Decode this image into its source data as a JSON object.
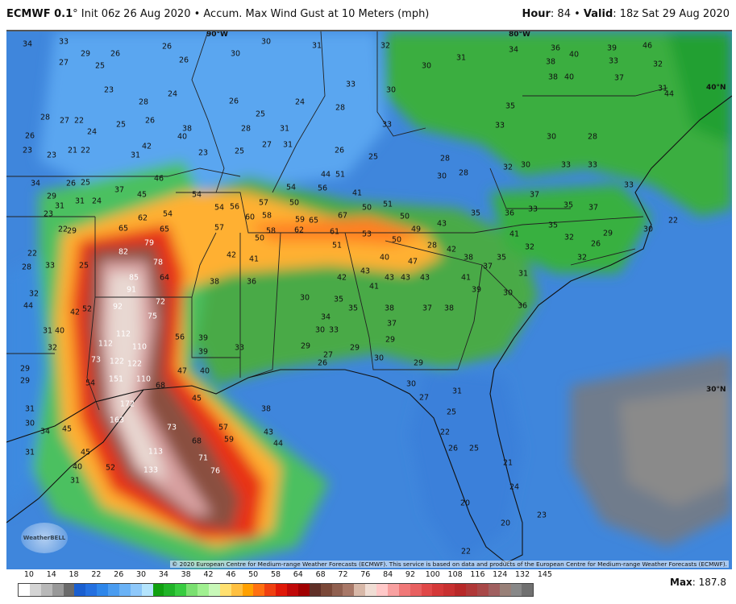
{
  "header": {
    "model": "ECMWF 0.1",
    "init": "° Init 06z 26 Aug 2020 • Accum. Max Wind Gust at 10 Meters (mph)",
    "hour_label": "Hour",
    "hour": ": 84 • ",
    "valid_label": "Valid",
    "valid": ": 18z Sat 29 Aug 2020"
  },
  "map": {
    "grid_labels": [
      "90°W",
      "80°W",
      "40°N",
      "30°N"
    ],
    "logo": "WeatherBELL",
    "copyright": "© 2020 European Centre for Medium-range Weather Forecasts (ECMWF). This service is based on data and products of the European Centre for Medium-range Weather Forecasts (ECMWF).",
    "values": [
      34,
      33,
      29,
      26,
      26,
      26,
      30,
      30,
      31,
      32,
      30,
      31,
      34,
      40,
      46,
      39,
      27,
      25,
      23,
      28,
      24,
      26,
      25,
      22,
      24,
      26,
      23,
      23,
      21,
      22,
      31,
      28,
      31,
      28,
      33,
      30,
      33,
      35,
      33,
      30,
      28,
      34,
      37,
      45,
      46,
      54,
      62,
      54,
      65,
      65,
      79,
      82,
      78,
      85,
      91,
      64,
      92,
      72,
      75,
      112,
      112,
      110,
      122,
      122,
      151,
      110,
      172,
      163,
      113,
      133,
      73,
      68,
      71,
      76,
      57,
      59,
      52,
      45,
      40,
      31,
      45,
      34,
      31,
      30,
      31,
      29,
      29,
      32,
      40,
      31,
      42,
      52,
      73,
      54,
      68,
      45,
      38,
      43,
      44,
      56,
      47,
      39,
      39,
      40,
      33,
      38,
      36,
      42,
      41,
      50,
      58,
      60,
      58,
      57,
      56,
      54,
      57,
      54,
      50,
      59,
      65,
      62,
      67,
      61,
      53,
      50,
      51,
      50,
      49,
      51,
      43,
      50,
      44,
      51,
      56,
      41,
      40,
      47,
      43,
      42,
      41,
      43,
      43,
      43,
      41,
      39,
      38,
      37,
      35,
      38,
      37,
      38,
      37,
      33,
      34,
      30,
      30,
      35,
      35,
      29,
      29,
      27,
      26,
      29,
      29,
      30,
      30,
      27,
      31,
      25,
      22,
      26,
      25,
      21,
      24,
      20,
      20,
      23,
      22,
      33,
      37,
      36,
      35,
      37,
      35,
      32,
      29,
      30,
      26,
      32,
      32,
      31,
      30,
      36,
      41,
      35,
      42,
      28,
      30,
      32,
      33,
      33,
      33,
      22,
      23,
      22,
      22,
      28,
      32,
      44,
      25,
      33,
      29,
      31,
      24,
      26,
      25,
      29,
      31,
      28,
      27,
      25,
      26,
      24,
      26,
      25,
      28,
      28,
      30,
      31,
      27,
      25,
      23,
      40,
      38,
      42,
      44,
      37,
      38,
      40,
      38,
      36,
      33,
      32,
      31
    ],
    "colors": {
      "ocean": "#3f86dc",
      "core": "#e8d8d2"
    }
  },
  "legend": {
    "labels": [
      "10",
      "14",
      "18",
      "22",
      "26",
      "30",
      "34",
      "38",
      "42",
      "46",
      "50",
      "58",
      "64",
      "68",
      "72",
      "76",
      "84",
      "92",
      "100",
      "108",
      "116",
      "124",
      "132",
      "145"
    ],
    "colors": [
      "#ffffff",
      "#d4d4d4",
      "#b8b8b8",
      "#989898",
      "#6a6a6a",
      "#1a5fd0",
      "#2470e0",
      "#2e86ea",
      "#4a9cf0",
      "#6ab2f6",
      "#8ec8fa",
      "#b4e4fc",
      "#10a010",
      "#20b428",
      "#38cc40",
      "#7ae070",
      "#a0f090",
      "#c8f8b8",
      "#ffe070",
      "#ffc040",
      "#ffa000",
      "#ff7010",
      "#f04010",
      "#e01808",
      "#c00808",
      "#a00000",
      "#603028",
      "#7a4838",
      "#906050",
      "#a87868",
      "#d8b8a8",
      "#f0ddd4",
      "#ffc8c8",
      "#f8a0a0",
      "#f07878",
      "#e86060",
      "#e04848",
      "#d43838",
      "#c83030",
      "#b82828",
      "#b03838",
      "#a84848",
      "#a06060",
      "#988078",
      "#888888",
      "#707070"
    ],
    "max_label": "Max",
    "max_value": ": 187.8"
  }
}
